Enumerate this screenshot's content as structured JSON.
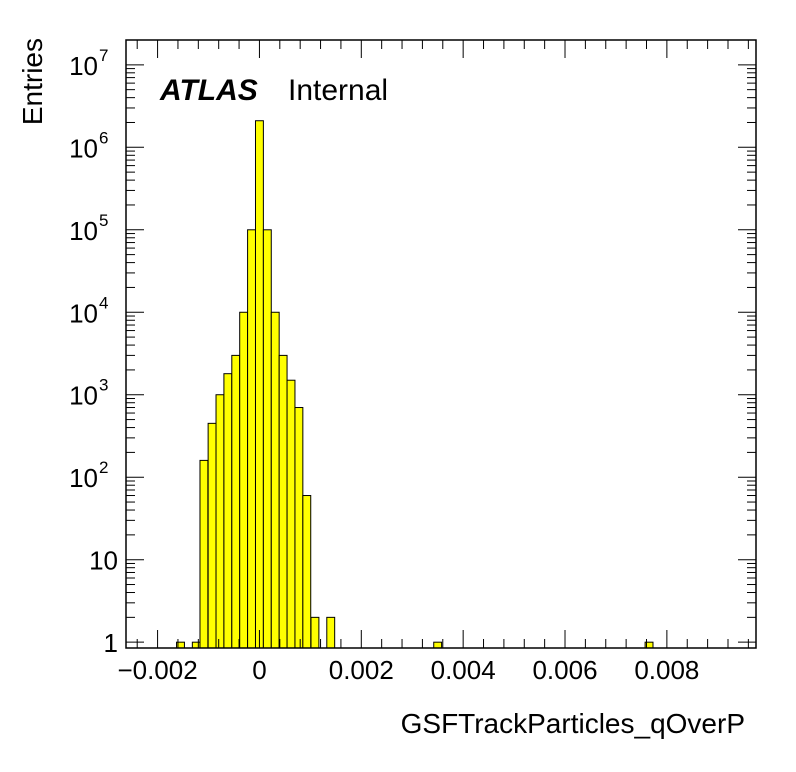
{
  "chart_data": {
    "type": "bar",
    "xlabel": "GSFTrackParticles_qOverP",
    "ylabel": "Entries",
    "y_scale": "log",
    "xlim": [
      -0.00262,
      0.00975
    ],
    "ylim": [
      0.85,
      20000000
    ],
    "bin_width": 0.000155,
    "fill_color": "#ffff00",
    "line_color": "#000000",
    "x_ticks": [
      {
        "value": -0.002,
        "label": "−0.002"
      },
      {
        "value": 0,
        "label": "0"
      },
      {
        "value": 0.002,
        "label": "0.002"
      },
      {
        "value": 0.004,
        "label": "0.004"
      },
      {
        "value": 0.006,
        "label": "0.006"
      },
      {
        "value": 0.008,
        "label": "0.008"
      }
    ],
    "y_ticks": [
      {
        "value": 1,
        "base": "1",
        "exp": ""
      },
      {
        "value": 10,
        "base": "10",
        "exp": ""
      },
      {
        "value": 100,
        "base": "10",
        "exp": "2"
      },
      {
        "value": 1000,
        "base": "10",
        "exp": "3"
      },
      {
        "value": 10000,
        "base": "10",
        "exp": "4"
      },
      {
        "value": 100000,
        "base": "10",
        "exp": "5"
      },
      {
        "value": 1000000,
        "base": "10",
        "exp": "6"
      },
      {
        "value": 10000000,
        "base": "10",
        "exp": "7"
      }
    ],
    "bins": [
      {
        "x": -0.00155,
        "y": 1
      },
      {
        "x": -0.00124,
        "y": 1
      },
      {
        "x": -0.00109,
        "y": 160
      },
      {
        "x": -0.00093,
        "y": 450
      },
      {
        "x": -0.000775,
        "y": 1000
      },
      {
        "x": -0.00062,
        "y": 1800
      },
      {
        "x": -0.000465,
        "y": 3000
      },
      {
        "x": -0.00031,
        "y": 10000
      },
      {
        "x": -0.000155,
        "y": 100000
      },
      {
        "x": 0.0,
        "y": 2100000
      },
      {
        "x": 0.000155,
        "y": 100000
      },
      {
        "x": 0.00031,
        "y": 10000
      },
      {
        "x": 0.000465,
        "y": 3000
      },
      {
        "x": 0.00062,
        "y": 1500
      },
      {
        "x": 0.000775,
        "y": 700
      },
      {
        "x": 0.00093,
        "y": 60
      },
      {
        "x": 0.00109,
        "y": 2
      },
      {
        "x": 0.0014,
        "y": 2
      },
      {
        "x": 0.0035,
        "y": 1
      },
      {
        "x": 0.00765,
        "y": 1
      }
    ]
  },
  "annotations": {
    "experiment": "ATLAS",
    "status": "Internal"
  }
}
